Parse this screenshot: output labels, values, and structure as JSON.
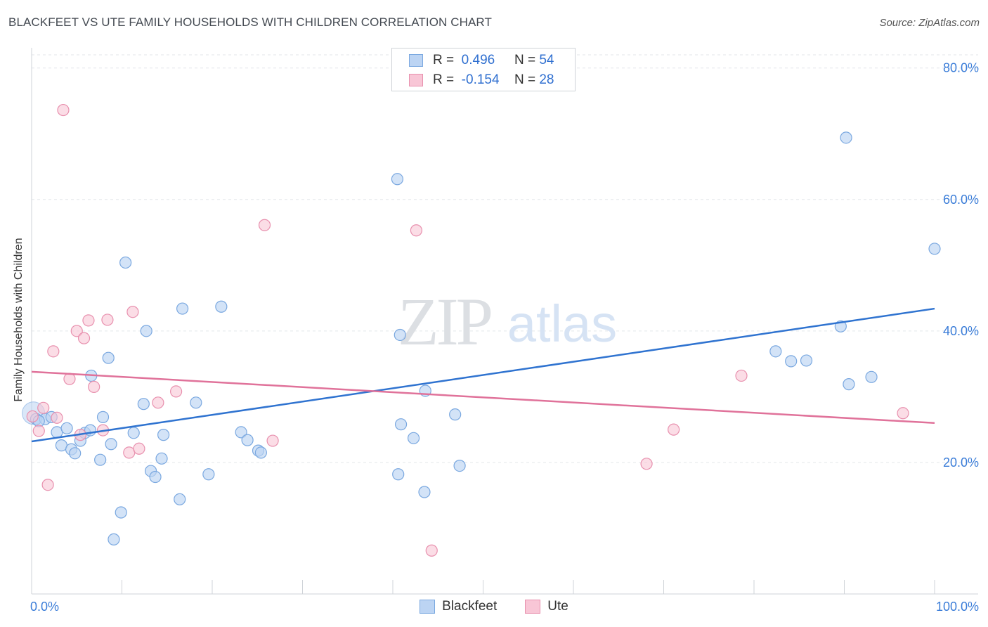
{
  "header": {
    "title": "BLACKFEET VS UTE FAMILY HOUSEHOLDS WITH CHILDREN CORRELATION CHART",
    "source": "Source: ZipAtlas.com"
  },
  "watermark": {
    "zip": "ZIP",
    "atlas": "atlas"
  },
  "colors": {
    "blackfeet_fill": "#bcd4f3",
    "blackfeet_stroke": "#7aa8e0",
    "blackfeet_line": "#2f73d0",
    "ute_fill": "#f8c6d6",
    "ute_stroke": "#e890ae",
    "ute_line": "#e0729a",
    "tick_text": "#3b7dd8"
  },
  "legend_top": {
    "rows": [
      {
        "r_label": "R =",
        "r_value": "0.496",
        "n_label": "N =",
        "n_value": "54"
      },
      {
        "r_label": "R =",
        "r_value": "-0.154",
        "n_label": "N =",
        "n_value": "28"
      }
    ]
  },
  "legend_bottom": {
    "items": [
      "Blackfeet",
      "Ute"
    ]
  },
  "chart_data": {
    "type": "scatter",
    "title": "BLACKFEET VS UTE FAMILY HOUSEHOLDS WITH CHILDREN CORRELATION CHART",
    "xlabel": "",
    "ylabel": "Family Households with Children",
    "xlim": [
      0,
      100
    ],
    "ylim": [
      0,
      82
    ],
    "x_tick_labels": {
      "min": "0.0%",
      "max": "100.0%"
    },
    "y_ticks": [
      20,
      40,
      60,
      80
    ],
    "y_tick_labels": [
      "20.0%",
      "40.0%",
      "60.0%",
      "80.0%"
    ],
    "grid": true,
    "series": [
      {
        "name": "Blackfeet",
        "r": 0.496,
        "n": 54,
        "trend": {
          "x": [
            0,
            100
          ],
          "y": [
            23.2,
            43.4
          ]
        },
        "points": [
          [
            0.2,
            27.5
          ],
          [
            0.5,
            26.6
          ],
          [
            1.5,
            26.6
          ],
          [
            2.2,
            26.9
          ],
          [
            2.8,
            24.6
          ],
          [
            3.3,
            22.6
          ],
          [
            3.9,
            25.2
          ],
          [
            4.4,
            22.0
          ],
          [
            4.8,
            21.4
          ],
          [
            5.4,
            23.3
          ],
          [
            5.9,
            24.5
          ],
          [
            6.5,
            24.9
          ],
          [
            6.6,
            33.2
          ],
          [
            7.6,
            20.4
          ],
          [
            7.9,
            26.9
          ],
          [
            8.5,
            35.9
          ],
          [
            8.8,
            22.8
          ],
          [
            9.1,
            8.3
          ],
          [
            9.9,
            12.4
          ],
          [
            10.4,
            50.4
          ],
          [
            11.3,
            24.5
          ],
          [
            12.4,
            28.9
          ],
          [
            12.7,
            40.0
          ],
          [
            13.2,
            18.7
          ],
          [
            13.7,
            17.8
          ],
          [
            14.4,
            20.6
          ],
          [
            14.6,
            24.2
          ],
          [
            16.4,
            14.4
          ],
          [
            16.7,
            43.4
          ],
          [
            18.2,
            29.1
          ],
          [
            19.6,
            18.2
          ],
          [
            21.0,
            43.7
          ],
          [
            23.2,
            24.6
          ],
          [
            23.9,
            23.4
          ],
          [
            25.1,
            21.8
          ],
          [
            25.4,
            21.5
          ],
          [
            40.6,
            18.2
          ],
          [
            40.9,
            25.8
          ],
          [
            42.3,
            23.7
          ],
          [
            43.5,
            15.5
          ],
          [
            40.5,
            63.1
          ],
          [
            40.8,
            39.4
          ],
          [
            43.6,
            30.9
          ],
          [
            46.9,
            27.3
          ],
          [
            47.4,
            19.5
          ],
          [
            90.2,
            69.4
          ],
          [
            89.6,
            40.7
          ],
          [
            100.0,
            52.5
          ],
          [
            82.4,
            36.9
          ],
          [
            84.1,
            35.4
          ],
          [
            85.8,
            35.5
          ],
          [
            90.5,
            31.9
          ],
          [
            93.0,
            33.0
          ],
          [
            0.8,
            26.3
          ]
        ]
      },
      {
        "name": "Ute",
        "r": -0.154,
        "n": 28,
        "trend": {
          "x": [
            0,
            100
          ],
          "y": [
            33.8,
            26.0
          ]
        },
        "points": [
          [
            0.1,
            27.0
          ],
          [
            0.8,
            24.8
          ],
          [
            1.3,
            28.3
          ],
          [
            1.8,
            16.6
          ],
          [
            2.4,
            36.9
          ],
          [
            2.8,
            26.8
          ],
          [
            3.5,
            73.6
          ],
          [
            4.2,
            32.7
          ],
          [
            5.0,
            40.0
          ],
          [
            5.4,
            24.2
          ],
          [
            5.8,
            38.9
          ],
          [
            6.3,
            41.6
          ],
          [
            6.9,
            31.5
          ],
          [
            7.9,
            24.9
          ],
          [
            8.4,
            41.7
          ],
          [
            10.8,
            21.5
          ],
          [
            11.2,
            42.9
          ],
          [
            11.9,
            22.1
          ],
          [
            14.0,
            29.1
          ],
          [
            16.0,
            30.8
          ],
          [
            25.8,
            56.1
          ],
          [
            26.7,
            23.3
          ],
          [
            42.6,
            55.3
          ],
          [
            44.3,
            6.6
          ],
          [
            68.1,
            19.8
          ],
          [
            71.1,
            25.0
          ],
          [
            78.6,
            33.2
          ],
          [
            96.5,
            27.5
          ]
        ]
      }
    ]
  }
}
